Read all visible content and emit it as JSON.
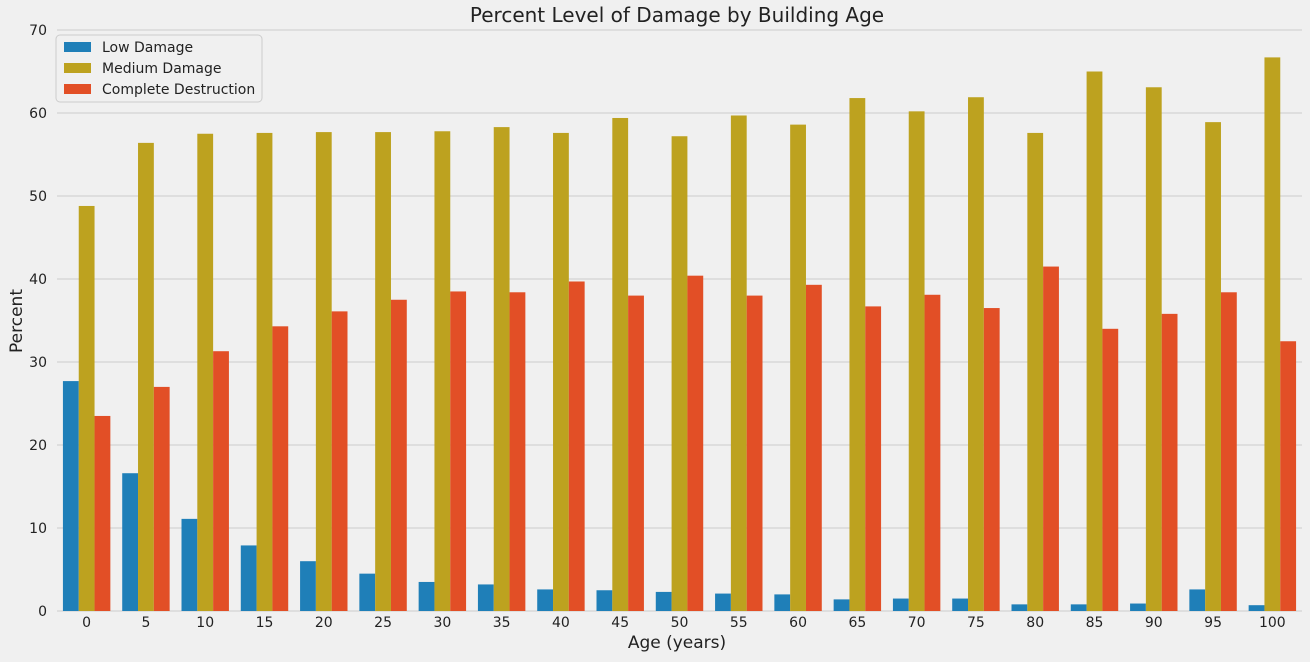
{
  "chart_data": {
    "type": "bar",
    "title": "Percent Level of Damage by Building Age",
    "xlabel": "Age (years)",
    "ylabel": "Percent",
    "ylim": [
      0,
      70
    ],
    "yticks": [
      0,
      10,
      20,
      30,
      40,
      50,
      60,
      70
    ],
    "grid": "horizontal",
    "legend_position": "top-left",
    "categories": [
      "0",
      "5",
      "10",
      "15",
      "20",
      "25",
      "30",
      "35",
      "40",
      "45",
      "50",
      "55",
      "60",
      "65",
      "70",
      "75",
      "80",
      "85",
      "90",
      "95",
      "100"
    ],
    "series": [
      {
        "name": "Low Damage",
        "color": "#1f7fb8",
        "values": [
          27.7,
          16.6,
          11.1,
          7.9,
          6.0,
          4.5,
          3.5,
          3.2,
          2.6,
          2.5,
          2.3,
          2.1,
          2.0,
          1.4,
          1.5,
          1.5,
          0.8,
          0.8,
          0.9,
          2.6,
          0.7
        ]
      },
      {
        "name": "Medium Damage",
        "color": "#bda21f",
        "values": [
          48.8,
          56.4,
          57.5,
          57.6,
          57.7,
          57.7,
          57.8,
          58.3,
          57.6,
          59.4,
          57.2,
          59.7,
          58.6,
          61.8,
          60.2,
          61.9,
          57.6,
          65.0,
          63.1,
          58.9,
          66.7
        ]
      },
      {
        "name": "Complete Destruction",
        "color": "#e24f26",
        "values": [
          23.5,
          27.0,
          31.3,
          34.3,
          36.1,
          37.5,
          38.5,
          38.4,
          39.7,
          38.0,
          40.4,
          38.0,
          39.3,
          36.7,
          38.1,
          36.5,
          41.5,
          34.0,
          35.8,
          38.4,
          32.5
        ]
      }
    ]
  }
}
